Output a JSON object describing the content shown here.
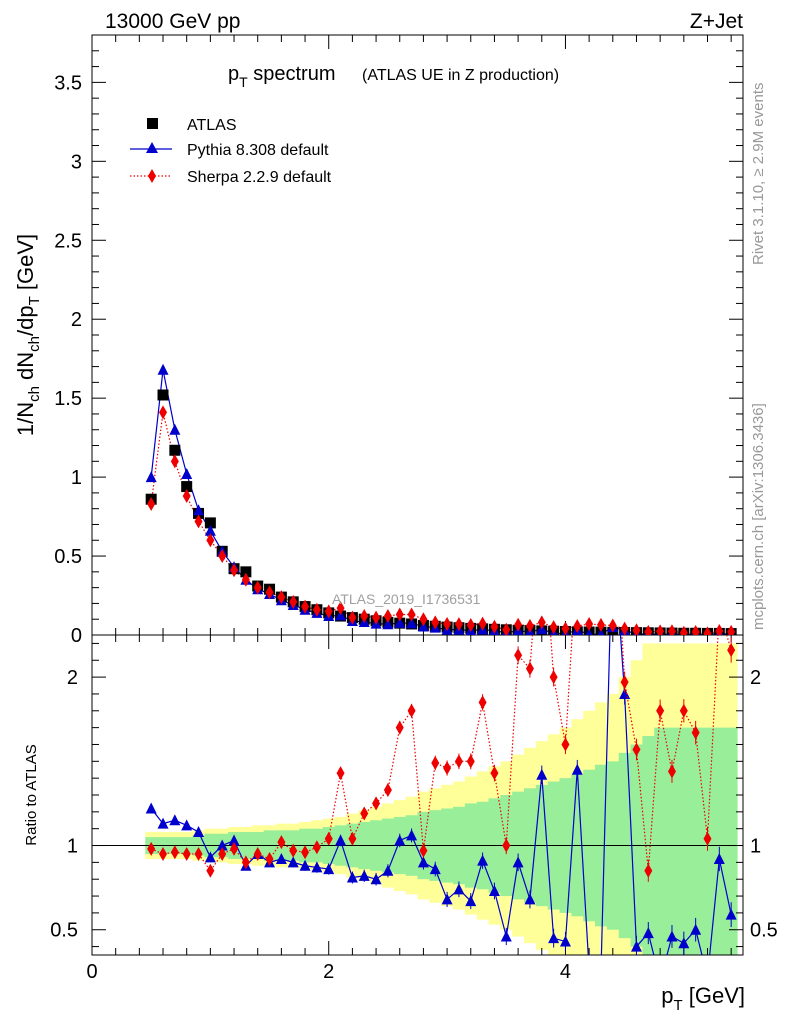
{
  "header": {
    "energy": "13000 GeV pp",
    "process": "Z+Jet"
  },
  "side": {
    "rivet": "Rivet 3.1.10, ≥ 2.9M events",
    "mcplots": "mcplots.cern.ch [arXiv:1306.3436]"
  },
  "chart_data": {
    "type": "scatter",
    "title": "p_T spectrum",
    "title_main": "p",
    "title_sub": "T",
    "title_tail": " spectrum",
    "subtitle": "(ATLAS UE in Z production)",
    "analysis_tag": "ATLAS_2019_I1736531",
    "x_axis": {
      "label_main": "p",
      "label_sub": "T",
      "label_tail": " [GeV]",
      "range": [
        0,
        5.5
      ],
      "ticks": [
        0,
        2,
        4
      ]
    },
    "main_panel": {
      "ylabel": "1/N_ch dN_ch/dp_T [GeV]",
      "y_range": [
        0,
        3.8
      ],
      "y_ticks": [
        "0",
        "0.5",
        "1",
        "1.5",
        "2",
        "2.5",
        "3",
        "3.5"
      ]
    },
    "ratio_panel": {
      "ylabel": "Ratio to ATLAS",
      "y_range": [
        0.35,
        2.25
      ],
      "y_ticks": [
        "0.5",
        "1",
        "2"
      ],
      "reference_line": 1
    },
    "legend": {
      "position": "top-left"
    },
    "x": [
      0.5,
      0.6,
      0.7,
      0.8,
      0.9,
      1.0,
      1.1,
      1.2,
      1.3,
      1.4,
      1.5,
      1.6,
      1.7,
      1.8,
      1.9,
      2.0,
      2.1,
      2.2,
      2.3,
      2.4,
      2.5,
      2.6,
      2.7,
      2.8,
      2.9,
      3.0,
      3.1,
      3.2,
      3.3,
      3.4,
      3.5,
      3.6,
      3.7,
      3.8,
      3.9,
      4.0,
      4.1,
      4.2,
      4.3,
      4.4,
      4.5,
      4.6,
      4.7,
      4.8,
      4.9,
      5.0,
      5.1,
      5.2,
      5.3,
      5.4
    ],
    "series": [
      {
        "name": "ATLAS",
        "color": "#000000",
        "marker": "square",
        "values": [
          0.86,
          1.52,
          1.17,
          0.94,
          0.77,
          0.71,
          0.53,
          0.42,
          0.4,
          0.31,
          0.29,
          0.24,
          0.21,
          0.18,
          0.16,
          0.14,
          0.12,
          0.11,
          0.1,
          0.09,
          0.08,
          0.075,
          0.07,
          0.06,
          0.055,
          0.05,
          0.046,
          0.042,
          0.039,
          0.036,
          0.033,
          0.03,
          0.028,
          0.026,
          0.024,
          0.022,
          0.02,
          0.019,
          0.018,
          0.017,
          0.016,
          0.015,
          0.014,
          0.013,
          0.012,
          0.011,
          0.011,
          0.01,
          0.01,
          0.009
        ],
        "uncertainty_bands": {
          "inner_color": "#99ee99",
          "outer_color": "#ffff99",
          "inner_halfwidth": [
            0.05,
            0.05,
            0.05,
            0.05,
            0.06,
            0.07,
            0.07,
            0.08,
            0.08,
            0.08,
            0.09,
            0.09,
            0.09,
            0.1,
            0.1,
            0.11,
            0.12,
            0.13,
            0.14,
            0.15,
            0.16,
            0.17,
            0.18,
            0.2,
            0.21,
            0.22,
            0.23,
            0.25,
            0.26,
            0.28,
            0.3,
            0.32,
            0.34,
            0.36,
            0.38,
            0.4,
            0.42,
            0.45,
            0.48,
            0.5,
            0.55,
            0.6,
            0.65,
            0.7,
            0.7,
            0.7,
            0.7,
            0.7,
            0.7,
            0.7
          ],
          "outer_halfwidth": [
            0.08,
            0.08,
            0.08,
            0.08,
            0.09,
            0.1,
            0.1,
            0.11,
            0.11,
            0.12,
            0.12,
            0.13,
            0.13,
            0.14,
            0.15,
            0.16,
            0.17,
            0.19,
            0.21,
            0.23,
            0.25,
            0.27,
            0.29,
            0.32,
            0.34,
            0.36,
            0.38,
            0.41,
            0.44,
            0.47,
            0.5,
            0.54,
            0.58,
            0.62,
            0.66,
            0.7,
            0.75,
            0.8,
            0.85,
            0.9,
            1.0,
            1.1,
            1.2,
            1.2,
            1.2,
            1.2,
            1.2,
            1.2,
            1.2,
            1.2
          ]
        }
      },
      {
        "name": "Pythia 8.308 default",
        "color": "#0000cc",
        "marker": "triangle",
        "line": "solid",
        "values": [
          1.0,
          1.68,
          1.3,
          1.02,
          0.79,
          0.66,
          0.53,
          0.43,
          0.35,
          0.29,
          0.26,
          0.22,
          0.19,
          0.16,
          0.14,
          0.12,
          0.124,
          0.089,
          0.082,
          0.072,
          0.068,
          0.077,
          0.074,
          0.054,
          0.047,
          0.034,
          0.034,
          0.028,
          0.035,
          0.026,
          0.015,
          0.027,
          0.019,
          0.037,
          0.011,
          0.009,
          0.029,
          0.005,
          0.005,
          0.05,
          0.03,
          0.006,
          0.007,
          0.003,
          0.006,
          0.005,
          0.005,
          0.005,
          0.009,
          0.005
        ],
        "ratio": [
          1.22,
          1.13,
          1.15,
          1.12,
          1.08,
          0.93,
          1.0,
          1.03,
          0.88,
          0.95,
          0.9,
          0.92,
          0.9,
          0.88,
          0.87,
          0.86,
          1.03,
          0.81,
          0.82,
          0.8,
          0.85,
          1.03,
          1.06,
          0.9,
          0.86,
          0.68,
          0.74,
          0.67,
          0.91,
          0.73,
          0.46,
          0.9,
          0.68,
          1.42,
          0.45,
          0.43,
          1.45,
          0.26,
          0.25,
          2.9,
          1.9,
          0.4,
          0.48,
          0.2,
          0.46,
          0.42,
          0.5,
          0.22,
          0.92,
          0.59
        ]
      },
      {
        "name": "Sherpa 2.2.9 default",
        "color": "#ee0000",
        "marker": "diamond",
        "line": "dotted",
        "values": [
          0.83,
          1.41,
          1.1,
          0.88,
          0.72,
          0.6,
          0.5,
          0.41,
          0.35,
          0.3,
          0.27,
          0.24,
          0.21,
          0.18,
          0.16,
          0.15,
          0.17,
          0.11,
          0.12,
          0.11,
          0.12,
          0.13,
          0.13,
          0.1,
          0.08,
          0.07,
          0.069,
          0.063,
          0.072,
          0.052,
          0.033,
          0.065,
          0.058,
          0.08,
          0.05,
          0.04,
          0.056,
          0.07,
          0.064,
          0.06,
          0.04,
          0.03,
          0.02,
          0.023,
          0.024,
          0.014,
          0.019,
          0.01,
          0.025,
          0.02
        ],
        "ratio": [
          0.98,
          0.95,
          0.96,
          0.95,
          0.95,
          0.85,
          0.95,
          0.98,
          0.9,
          0.95,
          0.92,
          1.02,
          0.97,
          0.96,
          0.99,
          1.04,
          1.43,
          1.04,
          1.19,
          1.25,
          1.33,
          1.7,
          1.8,
          0.97,
          1.49,
          1.46,
          1.5,
          1.5,
          1.85,
          1.43,
          1.0,
          2.13,
          2.05,
          3.0,
          2.0,
          1.6,
          2.75,
          3.6,
          3.5,
          3.2,
          1.97,
          1.57,
          0.85,
          1.8,
          1.44,
          1.8,
          1.67,
          1.04,
          2.4,
          2.16
        ]
      }
    ]
  }
}
